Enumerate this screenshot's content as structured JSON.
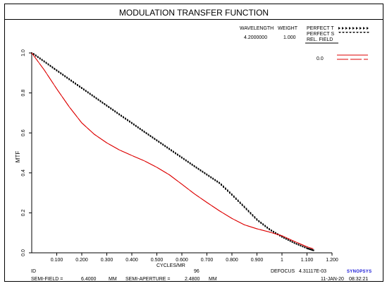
{
  "title": "MODULATION TRANSFER FUNCTION",
  "legend": {
    "wavelength_header": "WAVELENGTH",
    "weight_header": "WEIGHT",
    "wavelength_value": "4.2000000",
    "weight_value": "1.000",
    "perfect_t": "PERFECT T",
    "perfect_s": "PERFECT S",
    "rel_field": "REL. FIELD",
    "field_value": "0.0"
  },
  "footer": {
    "id_label": "ID",
    "id_value": "96",
    "defocus_label": "DEFOCUS",
    "defocus_value": "4.31117E-03",
    "semi_field_label": "SEMI-FIELD =",
    "semi_field_value": "6.4000",
    "semi_field_unit": "MM",
    "semi_aperture_label": "SEMI-APERTURE =",
    "semi_aperture_value": "2.4800",
    "semi_aperture_unit": "MM",
    "date": "11-JAN-20",
    "time": "08:32:21",
    "logo": "SYNOPSYS"
  },
  "colors": {
    "mtf_curve": "#dd0000",
    "perfect": "#000000",
    "axes": "#000000"
  },
  "chart_data": {
    "type": "line",
    "title": "MODULATION TRANSFER FUNCTION",
    "xlabel": "CYCLES/MR",
    "ylabel": "MTF",
    "xlim": [
      0,
      1.2
    ],
    "ylim": [
      0,
      1.0
    ],
    "x_tick_labels": [
      {
        "value": 0.1,
        "label": "0.100"
      },
      {
        "value": 0.2,
        "label": "0.200"
      },
      {
        "value": 0.3,
        "label": "0.300"
      },
      {
        "value": 0.4,
        "label": "0.400"
      },
      {
        "value": 0.5,
        "label": "0.500"
      },
      {
        "value": 0.6,
        "label": "0.600"
      },
      {
        "value": 0.7,
        "label": "0.700"
      },
      {
        "value": 0.8,
        "label": "0.800"
      },
      {
        "value": 0.9,
        "label": "0.900"
      },
      {
        "value": 1.0,
        "label": "1"
      },
      {
        "value": 1.1,
        "label": "1.100"
      },
      {
        "value": 1.2,
        "label": "1.200"
      }
    ],
    "y_tick_labels": [
      {
        "value": 0.0,
        "label": "0.0"
      },
      {
        "value": 0.2,
        "label": "0.2"
      },
      {
        "value": 0.4,
        "label": "0.4"
      },
      {
        "value": 0.6,
        "label": "0.6"
      },
      {
        "value": 0.8,
        "label": "0.8"
      },
      {
        "value": 1.0,
        "label": "1.0"
      }
    ],
    "grid": false,
    "legend_position": "top-right",
    "series": [
      {
        "name": "PERFECT T",
        "style": "dotted",
        "x": [
          0,
          0.05,
          0.1,
          0.15,
          0.2,
          0.25,
          0.3,
          0.35,
          0.4,
          0.45,
          0.5,
          0.55,
          0.6,
          0.65,
          0.7,
          0.75,
          0.8,
          0.85,
          0.9,
          0.95,
          1.0,
          1.05,
          1.1,
          1.125
        ],
        "y": [
          1.0,
          0.956,
          0.911,
          0.867,
          0.823,
          0.779,
          0.735,
          0.691,
          0.648,
          0.604,
          0.561,
          0.518,
          0.475,
          0.432,
          0.39,
          0.348,
          0.289,
          0.227,
          0.164,
          0.116,
          0.079,
          0.048,
          0.022,
          0.012
        ]
      },
      {
        "name": "PERFECT S",
        "style": "dotted",
        "x": [
          0,
          0.05,
          0.1,
          0.15,
          0.2,
          0.25,
          0.3,
          0.35,
          0.4,
          0.45,
          0.5,
          0.55,
          0.6,
          0.65,
          0.7,
          0.75,
          0.8,
          0.85,
          0.9,
          0.95,
          1.0,
          1.05,
          1.1,
          1.125
        ],
        "y": [
          1.0,
          0.956,
          0.911,
          0.867,
          0.823,
          0.779,
          0.735,
          0.691,
          0.648,
          0.604,
          0.561,
          0.518,
          0.475,
          0.432,
          0.39,
          0.348,
          0.289,
          0.227,
          0.164,
          0.116,
          0.079,
          0.048,
          0.022,
          0.012
        ]
      },
      {
        "name": "0.0 T",
        "style": "solid",
        "x": [
          0,
          0.05,
          0.1,
          0.15,
          0.2,
          0.25,
          0.3,
          0.35,
          0.4,
          0.45,
          0.5,
          0.55,
          0.6,
          0.65,
          0.7,
          0.75,
          0.8,
          0.85,
          0.9,
          0.95,
          1.0,
          1.05,
          1.1,
          1.125
        ],
        "y": [
          1.0,
          0.915,
          0.82,
          0.73,
          0.65,
          0.593,
          0.55,
          0.515,
          0.487,
          0.46,
          0.428,
          0.39,
          0.343,
          0.295,
          0.252,
          0.21,
          0.172,
          0.14,
          0.12,
          0.104,
          0.085,
          0.057,
          0.03,
          0.02
        ]
      },
      {
        "name": "0.0 S",
        "style": "dashed",
        "x": [
          0,
          0.05,
          0.1,
          0.15,
          0.2,
          0.25,
          0.3,
          0.35,
          0.4,
          0.45,
          0.5,
          0.55,
          0.6,
          0.65,
          0.7,
          0.75,
          0.8,
          0.85,
          0.9,
          0.95,
          1.0,
          1.05,
          1.1,
          1.125
        ],
        "y": [
          1.0,
          0.915,
          0.82,
          0.73,
          0.65,
          0.593,
          0.55,
          0.515,
          0.487,
          0.46,
          0.428,
          0.39,
          0.343,
          0.295,
          0.252,
          0.21,
          0.172,
          0.14,
          0.12,
          0.104,
          0.085,
          0.057,
          0.03,
          0.02
        ]
      }
    ]
  }
}
